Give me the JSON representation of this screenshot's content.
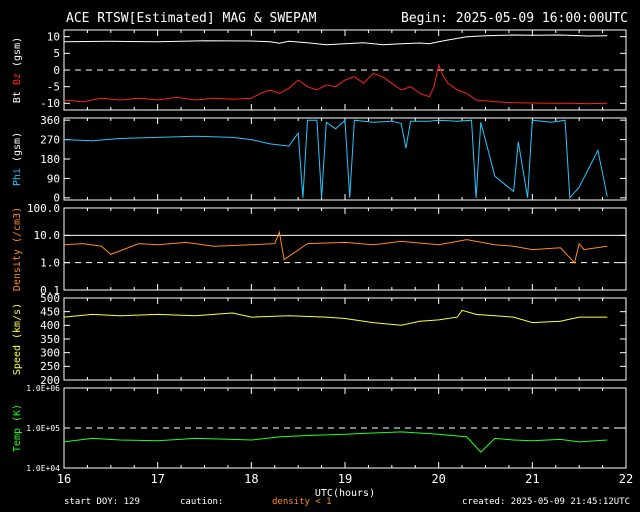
{
  "header": {
    "title": "ACE RTSW[Estimated] MAG & SWEPAM",
    "begin": "Begin: 2025-05-09 16:00:00UTC"
  },
  "footer": {
    "start_doy": "start DOY: 129",
    "caution": "caution:",
    "density_note": "density < 1",
    "created": "created: 2025-05-09 21:45:12UTC"
  },
  "chart_data": {
    "type": "line",
    "x_label": "UTC(hours)",
    "x_range": [
      16,
      22
    ],
    "x_ticks": [
      "16",
      "17",
      "18",
      "19",
      "20",
      "21",
      "22"
    ],
    "colors": {
      "bt": "#ffffff",
      "bz": "#ff2020",
      "phi": "#22c8ff",
      "density": "#ff8c1a",
      "speed": "#ffff3a",
      "temp": "#22ff22"
    },
    "panels": [
      {
        "id": "mag",
        "ylabel_parts": [
          "Bt",
          "Bz",
          "(gsm)"
        ],
        "ylabel_colors": [
          "#ffffff",
          "#ff2020",
          "#ffffff"
        ],
        "scale": "linear",
        "y_range": [
          -12,
          12
        ],
        "y_ticks": [
          -10,
          -5,
          0,
          5,
          10
        ],
        "y_tick_labels": [
          "-10",
          "-5",
          "0",
          "5",
          "10"
        ],
        "dashed": [
          0
        ],
        "series": [
          {
            "key": "bt",
            "color": "#ffffff",
            "x": [
              16.0,
              16.5,
              17.0,
              17.5,
              18.0,
              18.2,
              18.3,
              18.4,
              18.6,
              18.8,
              19.0,
              19.2,
              19.4,
              19.6,
              19.8,
              19.9,
              20.0,
              20.1,
              20.3,
              20.5,
              20.8,
              21.0,
              21.3,
              21.6,
              21.8
            ],
            "y": [
              8.5,
              8.6,
              8.5,
              8.8,
              8.7,
              8.5,
              8.0,
              8.6,
              8.2,
              7.6,
              7.9,
              8.2,
              7.6,
              7.9,
              8.1,
              7.9,
              8.5,
              9.0,
              10.0,
              10.3,
              10.5,
              10.4,
              10.5,
              10.2,
              10.3
            ]
          },
          {
            "key": "bz",
            "color": "#ff2020",
            "x": [
              16.0,
              16.2,
              16.4,
              16.6,
              16.8,
              17.0,
              17.2,
              17.4,
              17.6,
              17.8,
              18.0,
              18.1,
              18.2,
              18.3,
              18.4,
              18.5,
              18.6,
              18.7,
              18.8,
              18.9,
              19.0,
              19.1,
              19.2,
              19.3,
              19.4,
              19.5,
              19.6,
              19.7,
              19.8,
              19.9,
              19.95,
              20.0,
              20.05,
              20.1,
              20.2,
              20.3,
              20.4,
              20.6,
              20.8,
              21.0,
              21.2,
              21.4,
              21.6,
              21.8
            ],
            "y": [
              -9,
              -9.5,
              -8.5,
              -9,
              -8.5,
              -9,
              -8.2,
              -9,
              -8.5,
              -8.8,
              -8.5,
              -7,
              -6,
              -7,
              -5.5,
              -3,
              -5,
              -6,
              -4.5,
              -5,
              -3,
              -2,
              -4,
              -1,
              -2,
              -4,
              -6,
              -5,
              -7,
              -8,
              -5,
              1.5,
              -2,
              -4,
              -6,
              -7,
              -9,
              -9.5,
              -9.8,
              -9.9,
              -10,
              -10,
              -10.1,
              -10
            ]
          }
        ]
      },
      {
        "id": "phi",
        "ylabel_parts": [
          "Phi",
          "(gsm)"
        ],
        "ylabel_colors": [
          "#22c8ff",
          "#ffffff"
        ],
        "scale": "linear",
        "y_range": [
          -10,
          370
        ],
        "y_ticks": [
          0,
          90,
          180,
          270,
          360
        ],
        "y_tick_labels": [
          "0",
          "90",
          "180",
          "270",
          "360"
        ],
        "dashed": [],
        "series": [
          {
            "key": "phi",
            "color": "#22c8ff",
            "x": [
              16.0,
              16.3,
              16.6,
              17.0,
              17.4,
              17.8,
              18.0,
              18.2,
              18.4,
              18.5,
              18.55,
              18.6,
              18.7,
              18.75,
              18.8,
              18.9,
              19.0,
              19.05,
              19.1,
              19.3,
              19.5,
              19.6,
              19.65,
              19.7,
              19.9,
              20.0,
              20.2,
              20.35,
              20.4,
              20.45,
              20.6,
              20.8,
              20.85,
              20.95,
              21.0,
              21.2,
              21.35,
              21.4,
              21.5,
              21.7,
              21.8
            ],
            "y": [
              270,
              265,
              275,
              280,
              285,
              280,
              270,
              250,
              240,
              300,
              0,
              360,
              360,
              0,
              350,
              320,
              360,
              0,
              360,
              350,
              355,
              345,
              230,
              355,
              355,
              360,
              355,
              360,
              0,
              350,
              100,
              30,
              260,
              0,
              360,
              350,
              360,
              0,
              50,
              220,
              5
            ]
          }
        ]
      },
      {
        "id": "density",
        "ylabel_parts": [
          "Density",
          "(/cm3)"
        ],
        "ylabel_colors": [
          "#ff8c1a",
          "#ff8c1a"
        ],
        "scale": "log",
        "y_range": [
          0.1,
          100
        ],
        "y_ticks": [
          0.1,
          1,
          10,
          100
        ],
        "y_tick_labels": [
          "0.1",
          "1.0",
          "10.0",
          "100.0"
        ],
        "dashed": [
          1
        ],
        "solid_ref": [
          10
        ],
        "series": [
          {
            "key": "density",
            "color": "#ff8c1a",
            "x": [
              16.0,
              16.2,
              16.4,
              16.5,
              16.8,
              17.0,
              17.3,
              17.6,
              18.0,
              18.25,
              18.3,
              18.35,
              18.6,
              19.0,
              19.3,
              19.6,
              20.0,
              20.3,
              20.6,
              20.8,
              21.0,
              21.3,
              21.45,
              21.5,
              21.55,
              21.8
            ],
            "y": [
              4.5,
              5,
              4,
              2,
              5,
              4.5,
              5.5,
              4,
              4.5,
              5,
              13,
              1.3,
              5,
              5.5,
              4.5,
              6,
              4.5,
              7,
              4.5,
              4,
              3,
              3.5,
              1,
              5,
              3,
              4
            ]
          }
        ]
      },
      {
        "id": "speed",
        "ylabel_parts": [
          "Speed",
          "(km/s)"
        ],
        "ylabel_colors": [
          "#ffff3a",
          "#ffff3a"
        ],
        "scale": "linear",
        "y_range": [
          200,
          500
        ],
        "y_ticks": [
          200,
          250,
          300,
          350,
          400,
          450,
          500
        ],
        "y_tick_labels": [
          "200",
          "250",
          "300",
          "350",
          "400",
          "450",
          "500"
        ],
        "dashed": [],
        "series": [
          {
            "key": "speed",
            "color": "#ffff3a",
            "x": [
              16.0,
              16.3,
              16.6,
              17.0,
              17.4,
              17.8,
              18.0,
              18.4,
              18.8,
              19.0,
              19.3,
              19.6,
              19.8,
              20.0,
              20.2,
              20.25,
              20.4,
              20.6,
              20.8,
              21.0,
              21.3,
              21.5,
              21.8
            ],
            "y": [
              430,
              440,
              435,
              440,
              435,
              445,
              430,
              435,
              430,
              425,
              410,
              400,
              415,
              420,
              430,
              455,
              440,
              435,
              430,
              410,
              415,
              430,
              430
            ]
          }
        ]
      },
      {
        "id": "temp",
        "ylabel_parts": [
          "Temp",
          "(K)"
        ],
        "ylabel_colors": [
          "#22ff22",
          "#22ff22"
        ],
        "scale": "log",
        "y_range": [
          10000,
          1000000
        ],
        "y_ticks": [
          10000,
          100000,
          1000000
        ],
        "y_tick_labels": [
          "1.0E+04",
          "1.0E+05",
          "1.0E+06"
        ],
        "dashed": [
          100000
        ],
        "series": [
          {
            "key": "temp",
            "color": "#22ff22",
            "x": [
              16.0,
              16.3,
              16.6,
              17.0,
              17.4,
              17.8,
              18.0,
              18.3,
              18.6,
              19.0,
              19.3,
              19.6,
              20.0,
              20.3,
              20.45,
              20.6,
              20.8,
              21.0,
              21.3,
              21.5,
              21.8
            ],
            "y": [
              45000,
              55000,
              50000,
              48000,
              55000,
              52000,
              50000,
              60000,
              65000,
              70000,
              75000,
              80000,
              70000,
              60000,
              25000,
              55000,
              50000,
              48000,
              52000,
              45000,
              50000
            ]
          }
        ]
      }
    ]
  }
}
